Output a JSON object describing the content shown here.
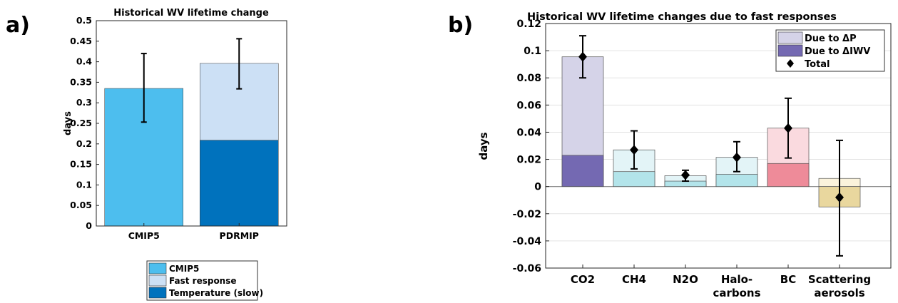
{
  "panel_a_letter": "a)",
  "panel_b_letter": "b)",
  "chart_data": [
    {
      "type": "bar",
      "panel": "a)",
      "title": "Historical WV lifetime change",
      "ylabel": "days",
      "ylim": [
        0,
        0.5
      ],
      "yticks": [
        0,
        0.05,
        0.1,
        0.15,
        0.2,
        0.25,
        0.3,
        0.35,
        0.4,
        0.45,
        0.5
      ],
      "ytick_labels": [
        "0",
        "0.05",
        "0.1",
        "0.15",
        "0.2",
        "0.25",
        "0.3",
        "0.35",
        "0.4",
        "0.45",
        "0.5"
      ],
      "categories": [
        "CMIP5",
        "PDRMIP"
      ],
      "series": [
        {
          "name": "CMIP5",
          "color": "#4DBEEE",
          "values": [
            0.335,
            null
          ]
        },
        {
          "name": "Fast response",
          "color": "#CCE0F5",
          "values": [
            null,
            0.187
          ]
        },
        {
          "name": "Temperature (slow)",
          "color": "#0072BD",
          "values": [
            null,
            0.209
          ]
        }
      ],
      "stacked": true,
      "totals": [
        0.335,
        0.396
      ],
      "error_bars": [
        [
          0.253,
          0.42
        ],
        [
          0.334,
          0.456
        ]
      ],
      "legend_placement": "bottom",
      "grid": false
    },
    {
      "type": "bar",
      "panel": "b)",
      "title": "Historical WV lifetime changes due to fast responses",
      "ylabel": "days",
      "ylim": [
        -0.06,
        0.12
      ],
      "yticks": [
        -0.06,
        -0.04,
        -0.02,
        0,
        0.02,
        0.04,
        0.06,
        0.08,
        0.1,
        0.12
      ],
      "ytick_labels": [
        "-0.06",
        "-0.04",
        "-0.02",
        "0",
        "0.02",
        "0.04",
        "0.06",
        "0.08",
        "0.1",
        "0.12"
      ],
      "categories": [
        [
          "CO2"
        ],
        [
          "CH4"
        ],
        [
          "N2O"
        ],
        [
          "Halo-",
          "carbons"
        ],
        [
          "BC"
        ],
        [
          "Scattering",
          "aerosols"
        ]
      ],
      "series": [
        {
          "name": "Due to ΔP",
          "values": [
            0.0955,
            0.027,
            0.008,
            0.0215,
            0.043,
            0.006
          ]
        },
        {
          "name": "Due to ΔIWV",
          "values": [
            0.023,
            0.011,
            0.004,
            0.009,
            0.017,
            -0.015
          ]
        },
        {
          "name": "Total",
          "values": [
            0.0955,
            0.027,
            0.0085,
            0.0215,
            0.043,
            -0.008
          ],
          "error_low": [
            0.08,
            0.013,
            0.004,
            0.011,
            0.021,
            -0.051
          ],
          "error_high": [
            0.111,
            0.041,
            0.012,
            0.033,
            0.065,
            0.034
          ]
        }
      ],
      "category_colors": {
        "light": [
          "#D5D3E8",
          "#E3F4F7",
          "#E3F4F7",
          "#E3F4F7",
          "#FADADF",
          "#FBF3DC"
        ],
        "dark": [
          "#7469B2",
          "#B3E4EA",
          "#B3E4EA",
          "#B3E4EA",
          "#EE8B99",
          "#E9D79E"
        ]
      },
      "legend_colors": [
        "#D5D3E8",
        "#7469B2"
      ],
      "legend_placement": "top-right",
      "grid": true
    }
  ]
}
